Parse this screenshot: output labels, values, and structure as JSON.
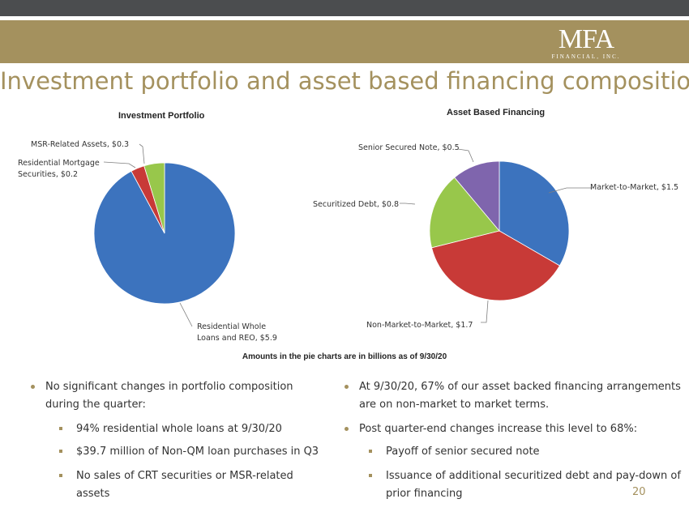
{
  "brand": {
    "gold": "#a4915e",
    "dark": "#4b4d4f",
    "logo_main": "MFA",
    "logo_sub": "FINANCIAL, INC."
  },
  "title": "Investment portfolio and asset based financing composition",
  "left_chart_title": "Investment Portfolio",
  "right_chart_title": "Asset Based Financing",
  "note": "Amounts in the pie charts are in billions as of 9/30/20",
  "chart_data": [
    {
      "type": "pie",
      "title": "Investment Portfolio",
      "slices": [
        {
          "label_line1": "Residential Whole",
          "label_line2": "Loans and REO, $5.9",
          "value": 5.9,
          "color": "#3c73be"
        },
        {
          "label_line1": "Residential Mortgage",
          "label_line2": "Securities, $0.2",
          "value": 0.2,
          "color": "#c83a37"
        },
        {
          "label_line1": "MSR-Related Assets, $0.3",
          "label_line2": "",
          "value": 0.3,
          "color": "#98c74b"
        }
      ]
    },
    {
      "type": "pie",
      "title": "Asset Based Financing",
      "slices": [
        {
          "label_line1": "Market-to-Market, $1.5",
          "label_line2": "",
          "value": 1.5,
          "color": "#3c73be"
        },
        {
          "label_line1": "Non-Market-to-Market, $1.7",
          "label_line2": "",
          "value": 1.7,
          "color": "#c83a37"
        },
        {
          "label_line1": "Securitized Debt, $0.8",
          "label_line2": "",
          "value": 0.8,
          "color": "#98c74b"
        },
        {
          "label_line1": "Senior Secured Note, $0.5",
          "label_line2": "",
          "value": 0.5,
          "color": "#7f65ad"
        }
      ]
    }
  ],
  "left_bullets": {
    "main_line1": "No significant changes in portfolio composition",
    "main_line2": "during the quarter:",
    "subs": [
      {
        "line1": "94% residential whole loans at 9/30/20",
        "line2": ""
      },
      {
        "line1": "$39.7 million of Non-QM loan purchases in Q3",
        "line2": ""
      },
      {
        "line1": "No sales of CRT securities or MSR-related",
        "line2": "assets"
      }
    ]
  },
  "right_bullets": {
    "main1_line1": "At 9/30/20, 67% of our asset backed financing arrangements",
    "main1_line2": "are on non-market to market terms.",
    "main2_line1": "Post quarter-end changes increase this level to 68%:",
    "subs": [
      {
        "line1": "Payoff of senior secured note",
        "line2": ""
      },
      {
        "line1": "Issuance of additional securitized debt and pay-down of",
        "line2": "prior financing"
      }
    ]
  },
  "page_number": "20"
}
